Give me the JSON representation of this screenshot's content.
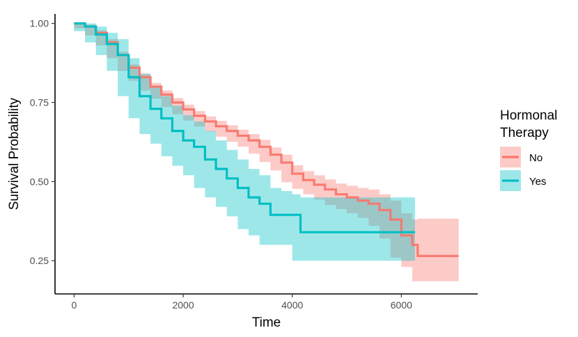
{
  "chart_data": {
    "type": "line",
    "title": "",
    "xlabel": "Time",
    "ylabel": "Survival Probability",
    "xlim": [
      -350,
      7400
    ],
    "ylim": [
      0.145,
      1.03
    ],
    "x_ticks": [
      0,
      2000,
      4000,
      6000
    ],
    "x_tick_labels": [
      "0",
      "2000",
      "4000",
      "6000"
    ],
    "y_ticks": [
      0.25,
      0.5,
      0.75,
      1.0
    ],
    "y_tick_labels": [
      "0.25",
      "0.50",
      "0.75",
      "1.00"
    ],
    "grid": false,
    "legend": {
      "title_lines": [
        "Hormonal",
        "Therapy"
      ],
      "placement": "right"
    },
    "series": [
      {
        "name": "No",
        "color": "#F8766D",
        "x": [
          0,
          200,
          400,
          600,
          800,
          1000,
          1200,
          1400,
          1600,
          1800,
          2000,
          2200,
          2400,
          2600,
          2800,
          3000,
          3200,
          3400,
          3600,
          3800,
          4000,
          4200,
          4400,
          4600,
          4800,
          5000,
          5200,
          5400,
          5600,
          5800,
          6000,
          6200,
          6300,
          7050
        ],
        "y": [
          1.0,
          0.99,
          0.97,
          0.94,
          0.9,
          0.86,
          0.83,
          0.8,
          0.775,
          0.75,
          0.728,
          0.708,
          0.69,
          0.675,
          0.66,
          0.645,
          0.63,
          0.61,
          0.585,
          0.56,
          0.525,
          0.505,
          0.49,
          0.475,
          0.46,
          0.45,
          0.44,
          0.43,
          0.41,
          0.38,
          0.33,
          0.3,
          0.265,
          0.265
        ],
        "lower": [
          1.0,
          0.984,
          0.962,
          0.93,
          0.89,
          0.85,
          0.818,
          0.788,
          0.762,
          0.736,
          0.713,
          0.693,
          0.674,
          0.658,
          0.642,
          0.626,
          0.61,
          0.588,
          0.562,
          0.535,
          0.498,
          0.477,
          0.46,
          0.443,
          0.426,
          0.413,
          0.4,
          0.385,
          0.36,
          0.32,
          0.26,
          0.23,
          0.185,
          0.185
        ],
        "upper": [
          1.0,
          0.996,
          0.978,
          0.95,
          0.91,
          0.87,
          0.842,
          0.812,
          0.788,
          0.764,
          0.743,
          0.723,
          0.706,
          0.692,
          0.678,
          0.664,
          0.65,
          0.632,
          0.608,
          0.585,
          0.552,
          0.533,
          0.52,
          0.507,
          0.494,
          0.487,
          0.48,
          0.475,
          0.46,
          0.44,
          0.4,
          0.38,
          0.383,
          0.383
        ]
      },
      {
        "name": "Yes",
        "color": "#00BFC4",
        "x": [
          0,
          200,
          400,
          600,
          800,
          1000,
          1200,
          1400,
          1600,
          1800,
          2000,
          2200,
          2400,
          2600,
          2800,
          3000,
          3200,
          3400,
          3600,
          3800,
          4000,
          4150,
          4200,
          5000,
          6000,
          6250
        ],
        "y": [
          1.0,
          0.99,
          0.965,
          0.935,
          0.9,
          0.83,
          0.77,
          0.73,
          0.7,
          0.66,
          0.63,
          0.61,
          0.57,
          0.54,
          0.51,
          0.48,
          0.45,
          0.43,
          0.395,
          0.395,
          0.395,
          0.34,
          0.34,
          0.34,
          0.34,
          0.34
        ],
        "lower": [
          1.0,
          0.975,
          0.94,
          0.9,
          0.85,
          0.77,
          0.7,
          0.65,
          0.62,
          0.58,
          0.55,
          0.52,
          0.48,
          0.45,
          0.42,
          0.39,
          0.35,
          0.33,
          0.3,
          0.3,
          0.3,
          0.25,
          0.25,
          0.25,
          0.25,
          0.25
        ],
        "upper": [
          1.0,
          1.0,
          0.99,
          0.97,
          0.95,
          0.89,
          0.84,
          0.8,
          0.77,
          0.74,
          0.71,
          0.69,
          0.66,
          0.63,
          0.6,
          0.57,
          0.54,
          0.52,
          0.48,
          0.47,
          0.46,
          0.45,
          0.45,
          0.45,
          0.45,
          0.45
        ]
      }
    ]
  }
}
